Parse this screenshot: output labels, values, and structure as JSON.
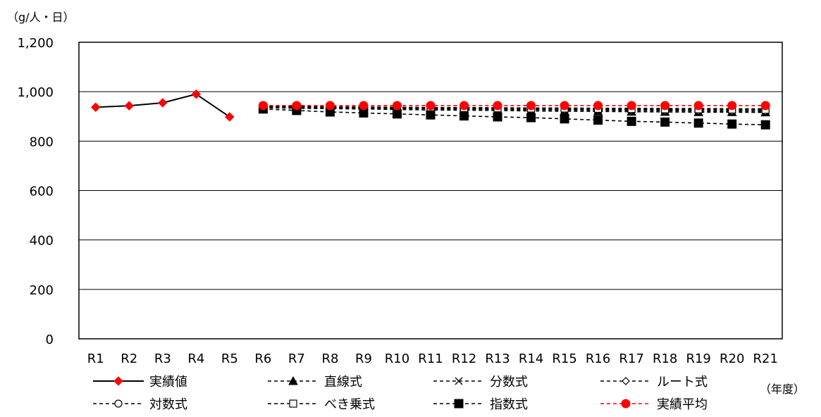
{
  "chart_data": {
    "type": "line",
    "y_unit_label": "（g/人・日）",
    "x_unit_label": "（年度）",
    "ylim": [
      0,
      1200
    ],
    "yticks": [
      0,
      200,
      400,
      600,
      800,
      1000,
      1200
    ],
    "ytick_labels": [
      "0",
      "200",
      "400",
      "600",
      "800",
      "1,000",
      "1,200"
    ],
    "grid": true,
    "legend_placement": "bottom",
    "categories": [
      "R1",
      "R2",
      "R3",
      "R4",
      "R5",
      "R6",
      "R7",
      "R8",
      "R9",
      "R10",
      "R11",
      "R12",
      "R13",
      "R14",
      "R15",
      "R16",
      "R17",
      "R18",
      "R19",
      "R20",
      "R21"
    ],
    "series": [
      {
        "name": "実績値",
        "style": "solid",
        "marker": "diamond",
        "line_color": "#000000",
        "marker_color": "#ff0000",
        "values": [
          937,
          943,
          955,
          990,
          898,
          null,
          null,
          null,
          null,
          null,
          null,
          null,
          null,
          null,
          null,
          null,
          null,
          null,
          null,
          null,
          null
        ]
      },
      {
        "name": "直線式",
        "style": "dashed",
        "marker": "triangle",
        "line_color": "#000000",
        "marker_color": "#000000",
        "values": [
          null,
          null,
          null,
          null,
          null,
          935,
          933,
          931,
          930,
          928,
          926,
          925,
          924,
          922,
          921,
          920,
          919,
          918,
          917,
          917,
          916
        ]
      },
      {
        "name": "分数式",
        "style": "dashed",
        "marker": "x",
        "line_color": "#000000",
        "marker_color": "#000000",
        "values": [
          null,
          null,
          null,
          null,
          null,
          940,
          938,
          937,
          936,
          935,
          934,
          933,
          932,
          931,
          930,
          929,
          928,
          927,
          927,
          926,
          925
        ]
      },
      {
        "name": "ルート式",
        "style": "dashed",
        "marker": "open-diamond",
        "line_color": "#000000",
        "marker_color": "#000000",
        "values": [
          null,
          null,
          null,
          null,
          null,
          938,
          936,
          935,
          933,
          932,
          931,
          929,
          928,
          927,
          926,
          925,
          924,
          923,
          922,
          921,
          920
        ]
      },
      {
        "name": "対数式",
        "style": "dashed",
        "marker": "open-circle",
        "line_color": "#000000",
        "marker_color": "#000000",
        "values": [
          null,
          null,
          null,
          null,
          null,
          941,
          940,
          939,
          938,
          937,
          936,
          936,
          935,
          934,
          934,
          933,
          933,
          932,
          932,
          931,
          931
        ]
      },
      {
        "name": "べき乗式",
        "style": "dashed",
        "marker": "open-square",
        "line_color": "#000000",
        "marker_color": "#000000",
        "values": [
          null,
          null,
          null,
          null,
          null,
          940,
          939,
          938,
          937,
          936,
          935,
          934,
          933,
          932,
          932,
          931,
          930,
          929,
          929,
          928,
          927
        ]
      },
      {
        "name": "指数式",
        "style": "dashed",
        "marker": "square",
        "line_color": "#000000",
        "marker_color": "#000000",
        "values": [
          null,
          null,
          null,
          null,
          null,
          930,
          924,
          918,
          914,
          910,
          906,
          902,
          898,
          895,
          890,
          885,
          880,
          877,
          873,
          869,
          866
        ]
      },
      {
        "name": "実績平均",
        "style": "dashed",
        "marker": "circle",
        "line_color": "#ff0000",
        "marker_color": "#ff0000",
        "values": [
          null,
          null,
          null,
          null,
          null,
          944,
          944,
          944,
          944,
          944,
          944,
          944,
          944,
          944,
          944,
          944,
          944,
          944,
          944,
          944,
          944
        ]
      }
    ]
  }
}
